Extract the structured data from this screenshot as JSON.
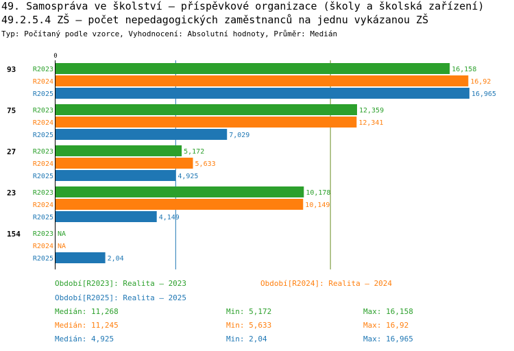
{
  "header": {
    "title": "49. Samospráva ve školství – příspěvkové organizace (školy a školská zařízení)",
    "subtitle": "49.2.5.4 ZŠ – počet nepedagogických zaměstnanců na jednu vykázanou ZŠ",
    "type_line": "Typ: Počítaný podle vzorce, Vyhodnocení: Absolutní hodnoty, Průměr: Medián"
  },
  "colors": {
    "R2023": "#2ca02c",
    "R2024": "#ff7f0e",
    "R2025": "#1f77b4",
    "median_line": "#6b8e23",
    "median_line2": "#1f77b4"
  },
  "chart_data": {
    "type": "bar",
    "orientation": "horizontal",
    "axis_zero_label": "0",
    "xlim": [
      0,
      17.4
    ],
    "categories": [
      "93",
      "75",
      "27",
      "23",
      "154"
    ],
    "series": [
      {
        "name": "R2023",
        "values": [
          16.158,
          12.359,
          5.172,
          10.178,
          null
        ],
        "labels": [
          "16,158",
          "12,359",
          "5,172",
          "10,178",
          "NA"
        ]
      },
      {
        "name": "R2024",
        "values": [
          16.92,
          12.341,
          5.633,
          10.149,
          null
        ],
        "labels": [
          "16,92",
          "12,341",
          "5,633",
          "10,149",
          "NA"
        ]
      },
      {
        "name": "R2025",
        "values": [
          16.965,
          7.029,
          4.925,
          4.149,
          2.04
        ],
        "labels": [
          "16,965",
          "7,029",
          "4,925",
          "4,149",
          "2,04"
        ]
      }
    ],
    "reference_lines": [
      {
        "name": "median-R2025",
        "value": 4.925
      },
      {
        "name": "median-R2023-R2024",
        "value": 11.268
      }
    ]
  },
  "legend": {
    "r2023": "Období[R2023]: Realita – 2023",
    "r2024": "Období[R2024]: Realita – 2024",
    "r2025": "Období[R2025]: Realita – 2025"
  },
  "stats": [
    {
      "median": "Medián: 11,268",
      "min": "Min: 5,172",
      "max": "Max: 16,158"
    },
    {
      "median": "Medián: 11,245",
      "min": "Min: 5,633",
      "max": "Max: 16,92"
    },
    {
      "median": "Medián: 4,925",
      "min": "Min: 2,04",
      "max": "Max: 16,965"
    }
  ]
}
